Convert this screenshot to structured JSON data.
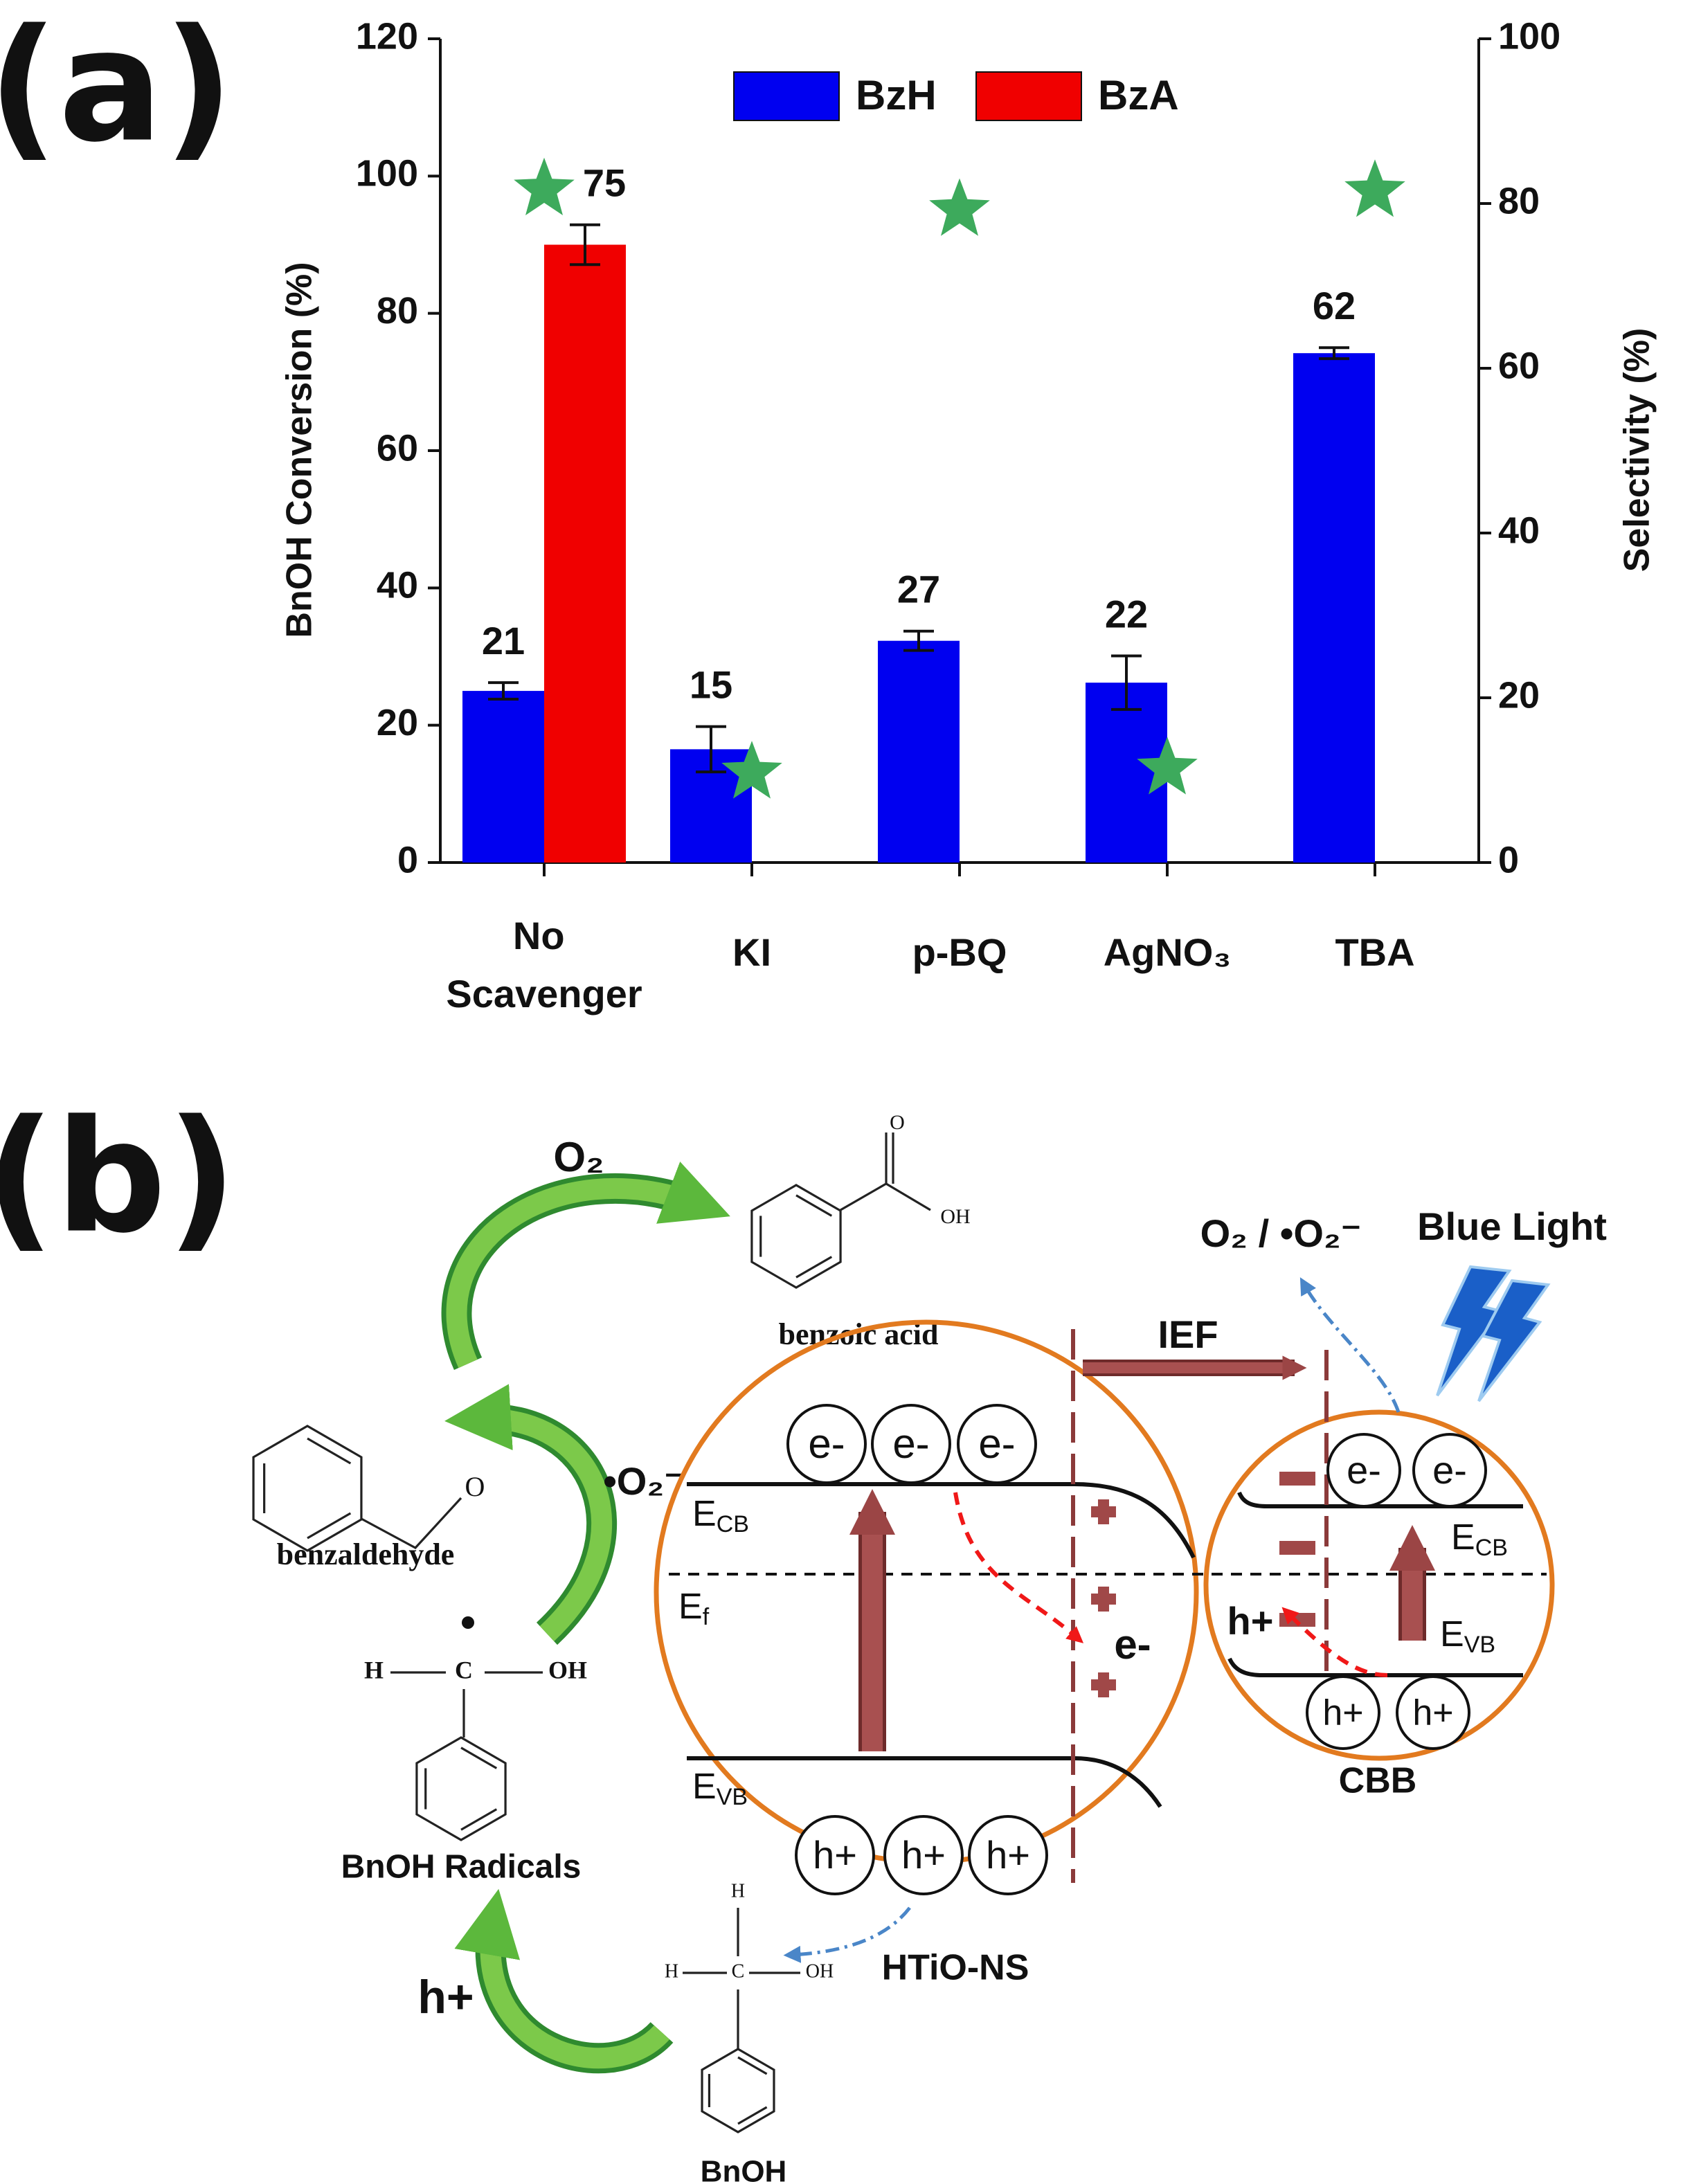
{
  "chart_data": {
    "type": "bar",
    "panel_label": "(a)",
    "categories": [
      "No Scavenger",
      "KI",
      "p-BQ",
      "AgNO₃",
      "TBA"
    ],
    "ylabel": "BnOH Conversion (%)",
    "y2label": "Selectivity (%)",
    "ylim": [
      0,
      120
    ],
    "yticks": [
      0,
      20,
      40,
      60,
      80,
      100,
      120
    ],
    "y2lim": [
      0,
      100
    ],
    "y2ticks": [
      0,
      20,
      40,
      60,
      80,
      100
    ],
    "legend": "top",
    "series": [
      {
        "name": "BzH",
        "color": "#0000f0",
        "values": [
          25.0,
          16.5,
          32.3,
          26.2,
          74.2
        ],
        "errors": [
          1.2,
          3.3,
          1.4,
          3.9,
          0.8
        ],
        "labels": [
          "21",
          "15",
          "27",
          "22",
          "62"
        ]
      },
      {
        "name": "BzA",
        "color": "#f00000",
        "values": [
          90.0,
          null,
          null,
          null,
          null
        ],
        "errors": [
          2.9,
          null,
          null,
          null,
          null
        ],
        "labels": [
          "75",
          null,
          null,
          null,
          null
        ]
      },
      {
        "type": "scatter",
        "marker": "star",
        "axis": "y2",
        "color": "#3daa5c",
        "values": [
          81.7,
          10.9,
          79.2,
          11.4,
          81.5
        ]
      }
    ]
  },
  "diagram": {
    "panel_label": "(b)",
    "oxygen": "O₂",
    "superoxide": "•O₂⁻",
    "holes_label": "h+",
    "benzoic_acid": {
      "name": "benzoic acid",
      "atoms": [
        "O",
        "OH"
      ]
    },
    "benzaldehyde": {
      "name": "benzaldehyde",
      "atoms": [
        "O"
      ]
    },
    "radical": {
      "name": "BnOH Radicals",
      "atoms": [
        "H",
        "C",
        "OH"
      ]
    },
    "bnoh": {
      "name": "BnOH",
      "atoms": [
        "H",
        "H",
        "C",
        "OH"
      ]
    },
    "htio": {
      "name": "HTiO-NS",
      "electrons": [
        "e-",
        "e-",
        "e-"
      ],
      "holes": [
        "h+",
        "h+",
        "h+"
      ],
      "ecb": {
        "main": "E",
        "sub": "CB"
      },
      "ef": {
        "main": "E",
        "sub": "f"
      },
      "evb": {
        "main": "E",
        "sub": "VB"
      },
      "transfer": "e-"
    },
    "cbb": {
      "name": "CBB",
      "electrons": [
        "e-",
        "e-"
      ],
      "holes": [
        "h+",
        "h+"
      ],
      "ecb": {
        "main": "E",
        "sub": "CB"
      },
      "evb": {
        "main": "E",
        "sub": "VB"
      },
      "transfer": "h+"
    },
    "ief": "IEF",
    "products": "O₂ / •O₂⁻",
    "light": "Blue Light"
  }
}
